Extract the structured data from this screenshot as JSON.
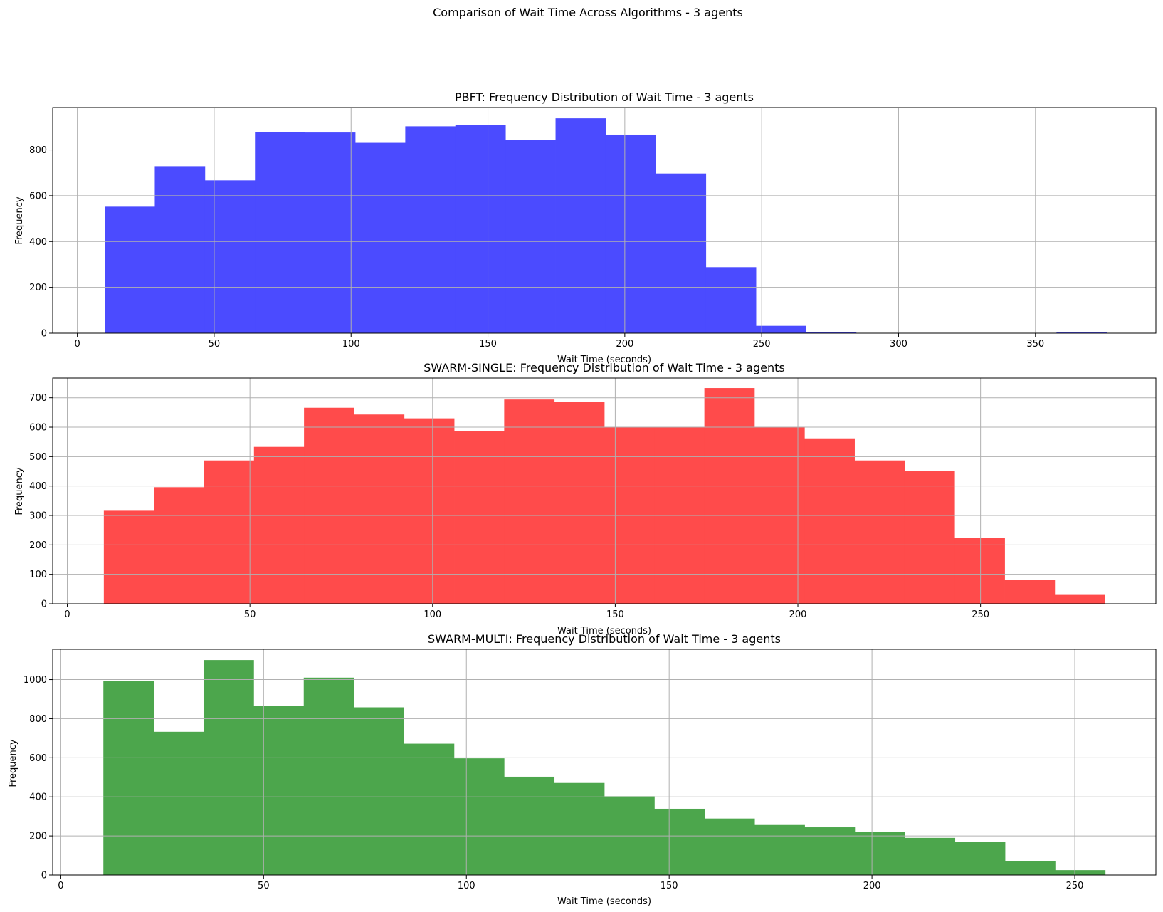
{
  "figure": {
    "suptitle": "Comparison of Wait Time Across Algorithms - 3 agents"
  },
  "chart_data": [
    {
      "type": "bar",
      "title": "PBFT: Frequency Distribution of Wait Time - 3 agents",
      "xlabel": "Wait Time (seconds)",
      "ylabel": "Frequency",
      "color": "#4b4bff",
      "bin_edges": [
        10,
        28.3,
        46.6,
        64.9,
        83.2,
        101.5,
        119.8,
        138.1,
        156.4,
        174.7,
        193.0,
        211.3,
        229.6,
        247.9,
        266.2,
        284.5,
        302.8,
        321.1,
        339.4,
        357.7,
        376.0
      ],
      "values": [
        552,
        729,
        667,
        879,
        876,
        831,
        903,
        910,
        843,
        938,
        867,
        697,
        288,
        32,
        4,
        0,
        0,
        0,
        0,
        3
      ],
      "xlim": [
        -9,
        394
      ],
      "ylim": [
        0,
        985
      ],
      "xticks": [
        0,
        50,
        100,
        150,
        200,
        250,
        300,
        350
      ],
      "yticks": [
        0,
        200,
        400,
        600,
        800
      ],
      "grid": true
    },
    {
      "type": "bar",
      "title": "SWARM-SINGLE: Frequency Distribution of Wait Time - 3 agents",
      "xlabel": "Wait Time (seconds)",
      "ylabel": "Frequency",
      "color": "#ff4b4b",
      "bin_edges": [
        10,
        23.7,
        37.4,
        51.1,
        64.8,
        78.5,
        92.2,
        105.9,
        119.6,
        133.3,
        147.0,
        160.7,
        174.4,
        188.1,
        201.8,
        215.5,
        229.2,
        242.9,
        256.6,
        270.3,
        284.0
      ],
      "values": [
        316,
        396,
        487,
        533,
        666,
        643,
        630,
        587,
        694,
        686,
        600,
        600,
        733,
        599,
        562,
        487,
        451,
        223,
        81,
        30
      ],
      "xlim": [
        -4,
        298
      ],
      "ylim": [
        0,
        767
      ],
      "xticks": [
        0,
        50,
        100,
        150,
        200,
        250
      ],
      "yticks": [
        0,
        100,
        200,
        300,
        400,
        500,
        600,
        700
      ],
      "grid": true
    },
    {
      "type": "bar",
      "title": "SWARM-MULTI: Frequency Distribution of Wait Time - 3 agents",
      "xlabel": "Wait Time (seconds)",
      "ylabel": "Frequency",
      "color": "#4ca64c",
      "bin_edges": [
        10.5,
        22.85,
        35.2,
        47.55,
        59.9,
        72.25,
        84.6,
        96.95,
        109.3,
        121.65,
        134.0,
        146.35,
        158.7,
        171.05,
        183.4,
        195.75,
        208.1,
        220.45,
        232.8,
        245.15,
        257.5
      ],
      "values": [
        994,
        733,
        1100,
        866,
        1010,
        858,
        672,
        597,
        503,
        471,
        403,
        339,
        289,
        256,
        244,
        222,
        190,
        168,
        70,
        25
      ],
      "xlim": [
        -2,
        270
      ],
      "ylim": [
        0,
        1155
      ],
      "xticks": [
        0,
        50,
        100,
        150,
        200,
        250
      ],
      "yticks": [
        0,
        200,
        400,
        600,
        800,
        1000
      ],
      "grid": true
    }
  ]
}
